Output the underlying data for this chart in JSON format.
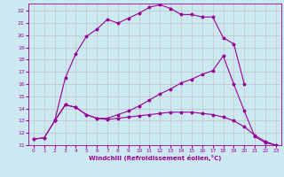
{
  "xlabel": "Windchill (Refroidissement éolien,°C)",
  "bg_color": "#cce8f0",
  "line_color": "#990099",
  "grid_color": "#bbbbbb",
  "xlim": [
    -0.5,
    23.5
  ],
  "ylim": [
    11,
    22.6
  ],
  "xticks": [
    0,
    1,
    2,
    3,
    4,
    5,
    6,
    7,
    8,
    9,
    10,
    11,
    12,
    13,
    14,
    15,
    16,
    17,
    18,
    19,
    20,
    21,
    22,
    23
  ],
  "yticks": [
    11,
    12,
    13,
    14,
    15,
    16,
    17,
    18,
    19,
    20,
    21,
    22
  ],
  "line_upper_x": [
    2,
    3,
    4,
    5,
    6,
    7,
    8,
    9,
    10,
    11,
    12,
    13,
    14,
    15,
    16,
    17,
    18,
    19,
    20
  ],
  "line_upper_y": [
    13.0,
    16.5,
    18.5,
    19.9,
    20.5,
    21.3,
    21.0,
    21.4,
    21.8,
    22.3,
    22.5,
    22.2,
    21.7,
    21.7,
    21.5,
    21.5,
    19.8,
    19.3,
    16.0
  ],
  "line_mid_x": [
    0,
    1,
    2,
    3,
    4,
    5,
    6,
    7,
    8,
    9,
    10,
    11,
    12,
    13,
    14,
    15,
    16,
    17,
    18,
    19,
    20,
    21,
    22,
    23
  ],
  "line_mid_y": [
    11.5,
    11.6,
    13.0,
    14.3,
    14.1,
    13.5,
    13.2,
    13.2,
    13.5,
    13.8,
    14.2,
    14.7,
    15.2,
    15.6,
    16.1,
    16.4,
    16.8,
    17.1,
    18.3,
    16.0,
    13.8,
    11.7,
    11.2,
    11.0
  ],
  "line_low_x": [
    0,
    1,
    2,
    3,
    4,
    5,
    6,
    7,
    8,
    9,
    10,
    11,
    12,
    13,
    14,
    15,
    16,
    17,
    18,
    19,
    20,
    21,
    22,
    23
  ],
  "line_low_y": [
    11.5,
    11.6,
    13.0,
    14.3,
    14.1,
    13.5,
    13.2,
    13.1,
    13.2,
    13.3,
    13.4,
    13.5,
    13.6,
    13.7,
    13.7,
    13.7,
    13.6,
    13.5,
    13.3,
    13.0,
    12.5,
    11.8,
    11.3,
    11.0
  ],
  "markersize": 2.5,
  "linewidth": 0.8
}
